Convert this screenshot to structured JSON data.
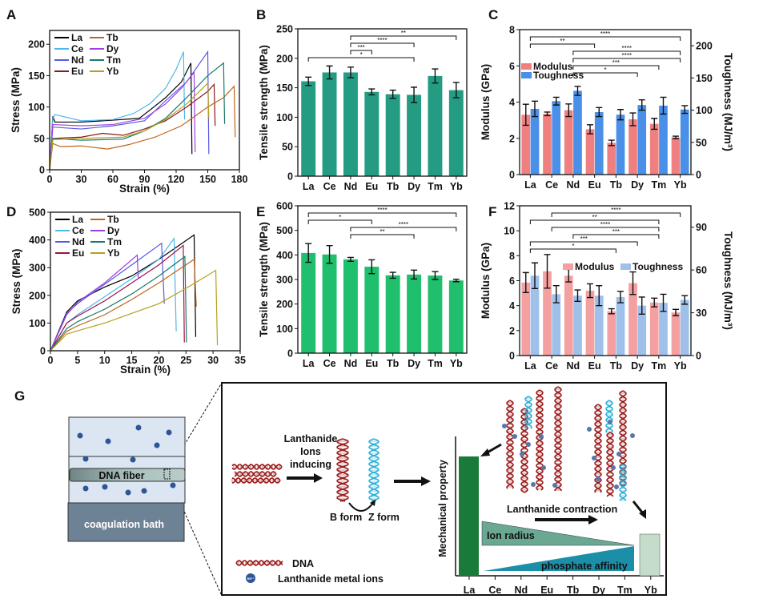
{
  "panels": [
    "A",
    "B",
    "C",
    "D",
    "E",
    "F",
    "G"
  ],
  "chart_data": [
    {
      "panel": "A",
      "type": "line",
      "xlabel": "Strain (%)",
      "ylabel": "Stress (MPa)",
      "xlim": [
        0,
        180
      ],
      "ylim": [
        0,
        222
      ],
      "xticks": [
        0,
        30,
        60,
        90,
        120,
        150,
        180
      ],
      "yticks": [
        0,
        50,
        100,
        150,
        200
      ],
      "legend": "top-left",
      "series": [
        {
          "name": "La",
          "color": "#000000",
          "points": [
            [
              0,
              0
            ],
            [
              3,
              85
            ],
            [
              5,
              76
            ],
            [
              30,
              76
            ],
            [
              60,
              79
            ],
            [
              85,
              82
            ],
            [
              95,
              95
            ],
            [
              110,
              115
            ],
            [
              125,
              140
            ],
            [
              134,
              170
            ],
            [
              135,
              25
            ]
          ]
        },
        {
          "name": "Ce",
          "color": "#4fb8e8",
          "points": [
            [
              0,
              0
            ],
            [
              3,
              82
            ],
            [
              5,
              88
            ],
            [
              30,
              78
            ],
            [
              60,
              80
            ],
            [
              80,
              90
            ],
            [
              95,
              105
            ],
            [
              110,
              130
            ],
            [
              120,
              160
            ],
            [
              127,
              188
            ],
            [
              128,
              80
            ]
          ]
        },
        {
          "name": "Nd",
          "color": "#5a5ae0",
          "points": [
            [
              0,
              0
            ],
            [
              3,
              68
            ],
            [
              30,
              65
            ],
            [
              60,
              70
            ],
            [
              90,
              78
            ],
            [
              110,
              110
            ],
            [
              130,
              140
            ],
            [
              150,
              188
            ],
            [
              151,
              25
            ]
          ]
        },
        {
          "name": "Eu",
          "color": "#8b1a1a",
          "points": [
            [
              0,
              0
            ],
            [
              3,
              50
            ],
            [
              30,
              52
            ],
            [
              50,
              58
            ],
            [
              70,
              55
            ],
            [
              90,
              65
            ],
            [
              110,
              78
            ],
            [
              130,
              100
            ],
            [
              150,
              125
            ],
            [
              156,
              136
            ],
            [
              157,
              70
            ]
          ]
        },
        {
          "name": "Tb",
          "color": "#c0651a",
          "points": [
            [
              0,
              0
            ],
            [
              3,
              42
            ],
            [
              10,
              37
            ],
            [
              30,
              38
            ],
            [
              55,
              33
            ],
            [
              75,
              40
            ],
            [
              100,
              52
            ],
            [
              125,
              70
            ],
            [
              150,
              100
            ],
            [
              165,
              115
            ],
            [
              175,
              133
            ],
            [
              176,
              52
            ]
          ]
        },
        {
          "name": "Dy",
          "color": "#a040e0",
          "points": [
            [
              0,
              0
            ],
            [
              3,
              72
            ],
            [
              30,
              70
            ],
            [
              60,
              72
            ],
            [
              90,
              82
            ],
            [
              110,
              105
            ],
            [
              125,
              130
            ],
            [
              137,
              155
            ],
            [
              138,
              28
            ]
          ]
        },
        {
          "name": "Tm",
          "color": "#1a7a6a",
          "points": [
            [
              0,
              0
            ],
            [
              3,
              50
            ],
            [
              30,
              47
            ],
            [
              70,
              49
            ],
            [
              90,
              62
            ],
            [
              110,
              82
            ],
            [
              130,
              115
            ],
            [
              150,
              150
            ],
            [
              165,
              170
            ],
            [
              166,
              73
            ]
          ]
        },
        {
          "name": "Yb",
          "color": "#b5a020",
          "points": [
            [
              0,
              0
            ],
            [
              3,
              48
            ],
            [
              30,
              50
            ],
            [
              70,
              52
            ],
            [
              90,
              62
            ],
            [
              110,
              80
            ],
            [
              130,
              105
            ],
            [
              150,
              138
            ],
            [
              151,
              82
            ]
          ]
        }
      ]
    },
    {
      "panel": "B",
      "type": "bar",
      "ylabel": "Tensile strength (MPa)",
      "ylim": [
        0,
        250
      ],
      "yticks": [
        0,
        50,
        100,
        150,
        200,
        250
      ],
      "categories": [
        "La",
        "Ce",
        "Nd",
        "Eu",
        "Tb",
        "Dy",
        "Tm",
        "Yb"
      ],
      "series": [
        {
          "color": "#249c83",
          "values": [
            161,
            176,
            176,
            143,
            139,
            138,
            170,
            146
          ],
          "errors": [
            7,
            11,
            9,
            5,
            7,
            13,
            12,
            13
          ]
        }
      ],
      "significance": [
        {
          "from": "Nd",
          "to": "Yb",
          "label": "**"
        },
        {
          "from": "Nd",
          "to": "Dy",
          "label": "****"
        },
        {
          "from": "Nd",
          "to": "Eu",
          "label": "***"
        },
        {
          "from": "La",
          "to": "Dy",
          "label": "*"
        }
      ]
    },
    {
      "panel": "C",
      "type": "bar",
      "ylabel": "Modulus (GPa)",
      "ylabel_right": "Toughness (MJ/m³)",
      "ylim": [
        0,
        8
      ],
      "ylim_right": [
        0,
        225
      ],
      "yticks": [
        0,
        2,
        4,
        6,
        8
      ],
      "yticks_right": [
        0,
        50,
        100,
        150,
        200
      ],
      "categories": [
        "La",
        "Ce",
        "Nd",
        "Eu",
        "Tb",
        "Dy",
        "Tm",
        "Yb"
      ],
      "legend": "top-left",
      "series": [
        {
          "name": "Modulus",
          "axis": "left",
          "color": "#f08080",
          "values": [
            3.3,
            3.35,
            3.55,
            2.5,
            1.75,
            3.05,
            2.8,
            2.05
          ],
          "errors": [
            0.58,
            0.1,
            0.35,
            0.25,
            0.15,
            0.35,
            0.3,
            0.07
          ]
        },
        {
          "name": "Toughness",
          "axis": "right",
          "color": "#4a90e8",
          "values": [
            102,
            114,
            130,
            97,
            93,
            108,
            107,
            101
          ],
          "errors": [
            12,
            6,
            7,
            7,
            8,
            8,
            13,
            6
          ]
        }
      ],
      "significance": [
        {
          "from": "La",
          "to": "Yb",
          "label": "****"
        },
        {
          "from": "La",
          "to": "Eu",
          "label": "**"
        },
        {
          "from": "Nd",
          "to": "Yb",
          "label": "****"
        },
        {
          "from": "Nd",
          "to": "Yb",
          "label": "****"
        },
        {
          "from": "Nd",
          "to": "Tm",
          "label": "***"
        },
        {
          "from": "Nd",
          "to": "Dy",
          "label": "*"
        }
      ]
    },
    {
      "panel": "D",
      "type": "line",
      "xlabel": "Strain (%)",
      "ylabel": "Stress (MPa)",
      "xlim": [
        0,
        35
      ],
      "ylim": [
        0,
        500
      ],
      "xticks": [
        0,
        5,
        10,
        15,
        20,
        25,
        30,
        35
      ],
      "yticks": [
        0,
        100,
        200,
        300,
        400,
        500
      ],
      "legend": "top-left",
      "series": [
        {
          "name": "La",
          "color": "#000000",
          "points": [
            [
              0,
              0
            ],
            [
              3,
              140
            ],
            [
              5,
              180
            ],
            [
              10,
              230
            ],
            [
              15,
              270
            ],
            [
              20,
              330
            ],
            [
              26.5,
              418
            ],
            [
              26.8,
              50
            ]
          ]
        },
        {
          "name": "Ce",
          "color": "#4fb8e8",
          "points": [
            [
              0,
              0
            ],
            [
              3,
              100
            ],
            [
              5,
              130
            ],
            [
              10,
              195
            ],
            [
              15,
              260
            ],
            [
              20,
              330
            ],
            [
              22.8,
              405
            ],
            [
              23.2,
              70
            ]
          ]
        },
        {
          "name": "Nd",
          "color": "#5a5ae0",
          "points": [
            [
              0,
              0
            ],
            [
              3,
              135
            ],
            [
              5,
              170
            ],
            [
              10,
              240
            ],
            [
              15,
              310
            ],
            [
              20.5,
              388
            ],
            [
              21,
              170
            ]
          ]
        },
        {
          "name": "Eu",
          "color": "#a0104a",
          "points": [
            [
              0,
              0
            ],
            [
              3,
              100
            ],
            [
              5,
              125
            ],
            [
              10,
              180
            ],
            [
              15,
              245
            ],
            [
              20,
              310
            ],
            [
              24.5,
              380
            ],
            [
              24.7,
              30
            ]
          ]
        },
        {
          "name": "Tb",
          "color": "#c0651a",
          "points": [
            [
              0,
              0
            ],
            [
              3,
              70
            ],
            [
              5,
              90
            ],
            [
              10,
              130
            ],
            [
              15,
              185
            ],
            [
              20,
              245
            ],
            [
              26.5,
              330
            ],
            [
              26.9,
              160
            ]
          ]
        },
        {
          "name": "Dy",
          "color": "#a040e0",
          "points": [
            [
              0,
              0
            ],
            [
              3,
              130
            ],
            [
              5,
              175
            ],
            [
              10,
              245
            ],
            [
              16,
              345
            ],
            [
              16.2,
              260
            ]
          ]
        },
        {
          "name": "Tm",
          "color": "#1a7a6a",
          "points": [
            [
              0,
              0
            ],
            [
              3,
              80
            ],
            [
              5,
              105
            ],
            [
              10,
              150
            ],
            [
              15,
              205
            ],
            [
              20,
              270
            ],
            [
              24.8,
              340
            ],
            [
              25.1,
              30
            ]
          ]
        },
        {
          "name": "Yb",
          "color": "#b5a020",
          "points": [
            [
              0,
              0
            ],
            [
              3,
              60
            ],
            [
              5,
              72
            ],
            [
              10,
              100
            ],
            [
              15,
              135
            ],
            [
              20,
              170
            ],
            [
              25,
              225
            ],
            [
              30.5,
              290
            ],
            [
              30.8,
              20
            ]
          ]
        }
      ]
    },
    {
      "panel": "E",
      "type": "bar",
      "ylabel": "Tensile strength (MPa)",
      "ylim": [
        0,
        600
      ],
      "yticks": [
        0,
        100,
        200,
        300,
        400,
        500,
        600
      ],
      "categories": [
        "La",
        "Ce",
        "Nd",
        "Eu",
        "Tb",
        "Dy",
        "Tm",
        "Yb"
      ],
      "series": [
        {
          "color": "#1fbf6e",
          "values": [
            408,
            402,
            382,
            352,
            317,
            320,
            316,
            296
          ],
          "errors": [
            38,
            36,
            8,
            28,
            12,
            18,
            16,
            5
          ]
        }
      ],
      "significance": [
        {
          "from": "La",
          "to": "Yb",
          "label": "****"
        },
        {
          "from": "La",
          "to": "Eu",
          "label": "*"
        },
        {
          "from": "Nd",
          "to": "Yb",
          "label": "****"
        },
        {
          "from": "Nd",
          "to": "Dy",
          "label": "**"
        }
      ]
    },
    {
      "panel": "F",
      "type": "bar",
      "ylabel": "Modulus (GPa)",
      "ylabel_right": "Toughness (MJ/m³)",
      "ylim": [
        0,
        12
      ],
      "ylim_right": [
        0,
        105
      ],
      "yticks": [
        0,
        2,
        4,
        6,
        8,
        10,
        12
      ],
      "yticks_right": [
        0,
        30,
        60,
        90
      ],
      "categories": [
        "La",
        "Ce",
        "Nd",
        "Eu",
        "Tb",
        "Dy",
        "Tm",
        "Yb"
      ],
      "legend": "center",
      "series": [
        {
          "name": "Modulus",
          "axis": "left",
          "color": "#f4a0a0",
          "values": [
            5.85,
            6.75,
            6.4,
            5.2,
            3.55,
            5.8,
            4.25,
            3.45
          ],
          "errors": [
            0.8,
            1.35,
            0.5,
            0.55,
            0.2,
            0.9,
            0.35,
            0.25
          ]
        },
        {
          "name": "Toughness",
          "axis": "right",
          "color": "#9ec0ea",
          "values": [
            56,
            43,
            42,
            42,
            41,
            35,
            37,
            39
          ],
          "errors": [
            9,
            6,
            4,
            7,
            4,
            6,
            6,
            3
          ]
        }
      ],
      "significance": [
        {
          "from": "Ce",
          "to": "Yb",
          "label": "****"
        },
        {
          "from": "La",
          "to": "Tm",
          "label": "**"
        },
        {
          "from": "Ce",
          "to": "Tm",
          "label": "****"
        },
        {
          "from": "Nd",
          "to": "Tm",
          "label": "***"
        },
        {
          "from": "La",
          "to": "Dy",
          "label": "***"
        },
        {
          "from": "La",
          "to": "Tb",
          "label": "*"
        }
      ]
    }
  ],
  "diagram": {
    "dna_fiber": "DNA fiber",
    "coagulation_bath": "coagulation bath",
    "inducing_line1": "Lanthanide",
    "inducing_line2": "Ions",
    "inducing_line3": "inducing",
    "b_form": "B form",
    "z_form": "Z form",
    "legend_dna": "DNA",
    "legend_ion": "Lanthanide metal ions",
    "ion_symbol": "RE³⁺",
    "mechanical_property": "Mechanical property",
    "lanthanide_contraction": "Lanthanide contraction",
    "ion_radius": "Ion radius",
    "phosphate_affinity": "phosphate affinity",
    "categories": [
      "La",
      "Ce",
      "Nd",
      "Eu",
      "Tb",
      "Dy",
      "Tm",
      "Yb"
    ],
    "colors": {
      "dna": "#9b1b1b",
      "z_dna": "#2bb0d8",
      "ion": "#2f5596",
      "high_bar": "#1a7a3a",
      "low_bar": "#c5dccb",
      "ion_radius": "#6aa892",
      "phosphate": "#1b8fa8"
    }
  }
}
